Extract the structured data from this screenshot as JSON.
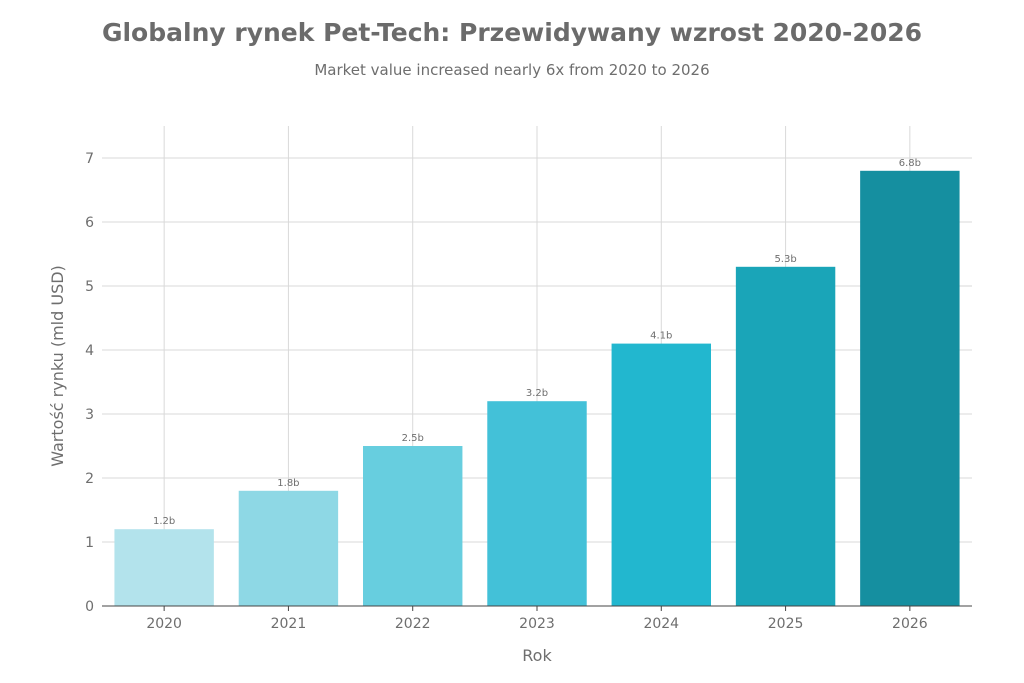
{
  "chart_data": {
    "type": "bar",
    "title": "Globalny rynek Pet-Tech: Przewidywany wzrost 2020-2026",
    "subtitle": "Market value increased nearly 6x from 2020 to 2026",
    "xlabel": "Rok",
    "ylabel": "Wartość rynku (mld USD)",
    "categories": [
      "2020",
      "2021",
      "2022",
      "2023",
      "2024",
      "2025",
      "2026"
    ],
    "values": [
      1.2,
      1.8,
      2.5,
      3.2,
      4.1,
      5.3,
      6.8
    ],
    "data_labels": [
      "1.2b",
      "1.8b",
      "2.5b",
      "3.2b",
      "4.1b",
      "5.3b",
      "6.8b"
    ],
    "ylim": [
      0,
      7.5
    ],
    "yticks": [
      0,
      1,
      2,
      3,
      4,
      5,
      6,
      7
    ],
    "grid": true,
    "colors": [
      "#b3e3ec",
      "#8ed8e5",
      "#67cedf",
      "#43c1d8",
      "#22b7cf",
      "#1aa5b8",
      "#158fa0"
    ],
    "grid_color": "#d9d9d9",
    "axis_color": "#444444"
  }
}
